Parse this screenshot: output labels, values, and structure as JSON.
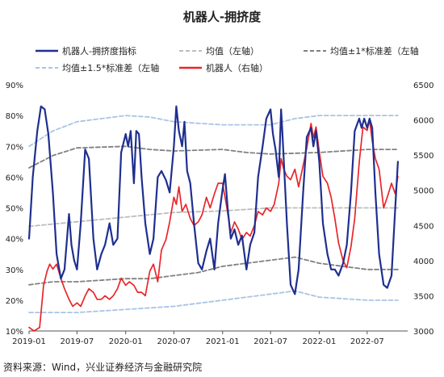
{
  "chart_data": {
    "type": "line",
    "title": "机器人-拥挤度",
    "source": "资料来源：Wind，兴业证券经济与金融研究院",
    "x_tick_labels": [
      "2019-01",
      "2019-07",
      "2020-01",
      "2020-07",
      "2021-01",
      "2021-07",
      "2022-01",
      "2022-07"
    ],
    "x_range": [
      "2019-01",
      "2022-12"
    ],
    "y_left": {
      "min": 0.1,
      "max": 0.9,
      "ticks": [
        "10%",
        "20%",
        "30%",
        "40%",
        "50%",
        "60%",
        "70%",
        "80%",
        "90%"
      ]
    },
    "y_right": {
      "min": 3000,
      "max": 6500,
      "ticks": [
        "3000",
        "3500",
        "4000",
        "4500",
        "5000",
        "5500",
        "6000",
        "6500"
      ]
    },
    "legend": {
      "placement": "top",
      "items": [
        {
          "label": "机器人-拥挤度指标",
          "color": "#1f2f8f",
          "style": "solid"
        },
        {
          "label": "均值（左轴）",
          "color": "#bdbdbd",
          "style": "dashed"
        },
        {
          "label": "均值±1*标准差（左轴",
          "color": "#808080",
          "style": "dashed"
        },
        {
          "label": "均值±1.5*标准差（左轴",
          "color": "#a9c4e4",
          "style": "dashed"
        },
        {
          "label": "机器人（右轴）",
          "color": "#e8262b",
          "style": "solid"
        }
      ]
    },
    "series": [
      {
        "name": "机器人-拥挤度指标",
        "axis": "left",
        "color": "#1f2f8f",
        "points": [
          [
            "2019-01-01",
            0.4
          ],
          [
            "2019-01-15",
            0.6
          ],
          [
            "2019-02-01",
            0.75
          ],
          [
            "2019-02-15",
            0.83
          ],
          [
            "2019-03-01",
            0.82
          ],
          [
            "2019-03-15",
            0.74
          ],
          [
            "2019-04-01",
            0.55
          ],
          [
            "2019-04-15",
            0.35
          ],
          [
            "2019-05-01",
            0.27
          ],
          [
            "2019-05-15",
            0.3
          ],
          [
            "2019-06-01",
            0.48
          ],
          [
            "2019-06-10",
            0.38
          ],
          [
            "2019-06-20",
            0.33
          ],
          [
            "2019-07-01",
            0.3
          ],
          [
            "2019-07-15",
            0.45
          ],
          [
            "2019-08-01",
            0.69
          ],
          [
            "2019-08-15",
            0.66
          ],
          [
            "2019-09-01",
            0.4
          ],
          [
            "2019-09-15",
            0.3
          ],
          [
            "2019-10-01",
            0.35
          ],
          [
            "2019-10-15",
            0.38
          ],
          [
            "2019-11-01",
            0.45
          ],
          [
            "2019-11-15",
            0.38
          ],
          [
            "2019-12-01",
            0.4
          ],
          [
            "2019-12-15",
            0.68
          ],
          [
            "2020-01-01",
            0.74
          ],
          [
            "2020-01-10",
            0.7
          ],
          [
            "2020-01-20",
            0.75
          ],
          [
            "2020-02-01",
            0.58
          ],
          [
            "2020-02-10",
            0.75
          ],
          [
            "2020-02-20",
            0.74
          ],
          [
            "2020-03-01",
            0.6
          ],
          [
            "2020-03-15",
            0.45
          ],
          [
            "2020-04-01",
            0.35
          ],
          [
            "2020-04-15",
            0.4
          ],
          [
            "2020-05-01",
            0.6
          ],
          [
            "2020-05-15",
            0.62
          ],
          [
            "2020-06-01",
            0.59
          ],
          [
            "2020-06-15",
            0.55
          ],
          [
            "2020-07-01",
            0.7
          ],
          [
            "2020-07-10",
            0.83
          ],
          [
            "2020-07-20",
            0.75
          ],
          [
            "2020-08-01",
            0.7
          ],
          [
            "2020-08-10",
            0.78
          ],
          [
            "2020-08-20",
            0.62
          ],
          [
            "2020-09-01",
            0.58
          ],
          [
            "2020-09-15",
            0.45
          ],
          [
            "2020-10-01",
            0.32
          ],
          [
            "2020-10-15",
            0.3
          ],
          [
            "2020-11-01",
            0.36
          ],
          [
            "2020-11-15",
            0.4
          ],
          [
            "2020-12-01",
            0.3
          ],
          [
            "2020-12-15",
            0.45
          ],
          [
            "2021-01-01",
            0.56
          ],
          [
            "2021-01-10",
            0.61
          ],
          [
            "2021-01-20",
            0.5
          ],
          [
            "2021-02-01",
            0.4
          ],
          [
            "2021-02-15",
            0.43
          ],
          [
            "2021-03-01",
            0.38
          ],
          [
            "2021-03-15",
            0.41
          ],
          [
            "2021-04-01",
            0.3
          ],
          [
            "2021-04-15",
            0.38
          ],
          [
            "2021-05-01",
            0.42
          ],
          [
            "2021-05-15",
            0.6
          ],
          [
            "2021-06-01",
            0.7
          ],
          [
            "2021-06-15",
            0.79
          ],
          [
            "2021-07-01",
            0.82
          ],
          [
            "2021-07-10",
            0.74
          ],
          [
            "2021-07-20",
            0.69
          ],
          [
            "2021-08-01",
            0.6
          ],
          [
            "2021-08-10",
            0.82
          ],
          [
            "2021-08-15",
            0.74
          ],
          [
            "2021-09-01",
            0.45
          ],
          [
            "2021-09-15",
            0.25
          ],
          [
            "2021-10-01",
            0.22
          ],
          [
            "2021-10-15",
            0.3
          ],
          [
            "2021-11-01",
            0.55
          ],
          [
            "2021-11-15",
            0.73
          ],
          [
            "2021-12-01",
            0.76
          ],
          [
            "2021-12-10",
            0.7
          ],
          [
            "2021-12-20",
            0.75
          ],
          [
            "2022-01-01",
            0.65
          ],
          [
            "2022-01-15",
            0.45
          ],
          [
            "2022-02-01",
            0.35
          ],
          [
            "2022-02-15",
            0.3
          ],
          [
            "2022-03-01",
            0.3
          ],
          [
            "2022-03-15",
            0.28
          ],
          [
            "2022-04-01",
            0.32
          ],
          [
            "2022-04-15",
            0.38
          ],
          [
            "2022-05-01",
            0.55
          ],
          [
            "2022-05-15",
            0.75
          ],
          [
            "2022-06-01",
            0.79
          ],
          [
            "2022-06-10",
            0.76
          ],
          [
            "2022-06-20",
            0.79
          ],
          [
            "2022-07-01",
            0.76
          ],
          [
            "2022-07-10",
            0.79
          ],
          [
            "2022-07-20",
            0.76
          ],
          [
            "2022-08-01",
            0.55
          ],
          [
            "2022-08-15",
            0.35
          ],
          [
            "2022-09-01",
            0.25
          ],
          [
            "2022-09-15",
            0.24
          ],
          [
            "2022-10-01",
            0.28
          ],
          [
            "2022-10-15",
            0.5
          ],
          [
            "2022-10-25",
            0.65
          ]
        ]
      },
      {
        "name": "均值（左轴）",
        "axis": "left",
        "color": "#bdbdbd",
        "points": [
          [
            "2019-01-01",
            0.44
          ],
          [
            "2019-07-01",
            0.455
          ],
          [
            "2020-01-01",
            0.47
          ],
          [
            "2020-07-01",
            0.485
          ],
          [
            "2021-01-01",
            0.49
          ],
          [
            "2021-07-01",
            0.5
          ],
          [
            "2022-01-01",
            0.5
          ],
          [
            "2022-07-01",
            0.5
          ],
          [
            "2022-10-25",
            0.5
          ]
        ]
      },
      {
        "name": "均值+1*标准差（左轴",
        "axis": "left",
        "color": "#808080",
        "points": [
          [
            "2019-01-01",
            0.63
          ],
          [
            "2019-04-01",
            0.67
          ],
          [
            "2019-07-01",
            0.695
          ],
          [
            "2020-01-01",
            0.7
          ],
          [
            "2020-04-01",
            0.69
          ],
          [
            "2020-07-01",
            0.685
          ],
          [
            "2021-01-01",
            0.69
          ],
          [
            "2021-04-01",
            0.68
          ],
          [
            "2021-07-01",
            0.675
          ],
          [
            "2022-01-01",
            0.68
          ],
          [
            "2022-07-01",
            0.69
          ],
          [
            "2022-10-25",
            0.69
          ]
        ]
      },
      {
        "name": "均值-1*标准差（左轴",
        "axis": "left",
        "color": "#808080",
        "points": [
          [
            "2019-01-01",
            0.25
          ],
          [
            "2019-04-01",
            0.26
          ],
          [
            "2019-07-01",
            0.26
          ],
          [
            "2020-01-01",
            0.27
          ],
          [
            "2020-04-01",
            0.27
          ],
          [
            "2020-07-01",
            0.28
          ],
          [
            "2020-10-01",
            0.29
          ],
          [
            "2021-01-01",
            0.31
          ],
          [
            "2021-04-01",
            0.32
          ],
          [
            "2021-07-01",
            0.33
          ],
          [
            "2021-10-01",
            0.34
          ],
          [
            "2022-01-01",
            0.32
          ],
          [
            "2022-07-01",
            0.3
          ],
          [
            "2022-10-25",
            0.3
          ]
        ]
      },
      {
        "name": "均值+1.5*标准差（左轴",
        "axis": "left",
        "color": "#a9c4e4",
        "points": [
          [
            "2019-01-01",
            0.7
          ],
          [
            "2019-04-01",
            0.75
          ],
          [
            "2019-07-01",
            0.78
          ],
          [
            "2020-01-01",
            0.8
          ],
          [
            "2020-04-01",
            0.795
          ],
          [
            "2020-07-01",
            0.78
          ],
          [
            "2021-01-01",
            0.77
          ],
          [
            "2021-04-01",
            0.77
          ],
          [
            "2021-07-01",
            0.77
          ],
          [
            "2021-10-01",
            0.79
          ],
          [
            "2022-01-01",
            0.8
          ],
          [
            "2022-07-01",
            0.8
          ],
          [
            "2022-10-25",
            0.8
          ]
        ]
      },
      {
        "name": "均值-1.5*标准差（左轴",
        "axis": "left",
        "color": "#a9c4e4",
        "points": [
          [
            "2019-01-01",
            0.16
          ],
          [
            "2019-07-01",
            0.16
          ],
          [
            "2020-01-01",
            0.17
          ],
          [
            "2020-07-01",
            0.18
          ],
          [
            "2021-01-01",
            0.2
          ],
          [
            "2021-07-01",
            0.22
          ],
          [
            "2021-10-01",
            0.23
          ],
          [
            "2022-01-01",
            0.21
          ],
          [
            "2022-07-01",
            0.2
          ],
          [
            "2022-10-25",
            0.2
          ]
        ]
      },
      {
        "name": "机器人（右轴）",
        "axis": "right",
        "color": "#e8262b",
        "points": [
          [
            "2019-01-01",
            3050
          ],
          [
            "2019-01-20",
            3000
          ],
          [
            "2019-02-10",
            3050
          ],
          [
            "2019-02-25",
            3650
          ],
          [
            "2019-03-10",
            3850
          ],
          [
            "2019-03-20",
            3950
          ],
          [
            "2019-04-01",
            3880
          ],
          [
            "2019-04-15",
            3950
          ],
          [
            "2019-05-01",
            3750
          ],
          [
            "2019-05-15",
            3600
          ],
          [
            "2019-06-01",
            3450
          ],
          [
            "2019-06-15",
            3350
          ],
          [
            "2019-07-01",
            3400
          ],
          [
            "2019-07-15",
            3350
          ],
          [
            "2019-08-01",
            3500
          ],
          [
            "2019-08-15",
            3600
          ],
          [
            "2019-09-01",
            3550
          ],
          [
            "2019-09-15",
            3450
          ],
          [
            "2019-10-01",
            3450
          ],
          [
            "2019-10-15",
            3500
          ],
          [
            "2019-11-01",
            3450
          ],
          [
            "2019-11-15",
            3500
          ],
          [
            "2019-12-01",
            3600
          ],
          [
            "2019-12-15",
            3750
          ],
          [
            "2020-01-01",
            3650
          ],
          [
            "2020-01-15",
            3700
          ],
          [
            "2020-02-01",
            3650
          ],
          [
            "2020-02-15",
            3550
          ],
          [
            "2020-03-01",
            3550
          ],
          [
            "2020-03-15",
            3500
          ],
          [
            "2020-04-01",
            3850
          ],
          [
            "2020-04-15",
            3950
          ],
          [
            "2020-05-01",
            3700
          ],
          [
            "2020-05-15",
            4150
          ],
          [
            "2020-06-01",
            4300
          ],
          [
            "2020-06-15",
            4550
          ],
          [
            "2020-07-01",
            4900
          ],
          [
            "2020-07-10",
            4800
          ],
          [
            "2020-07-20",
            5050
          ],
          [
            "2020-08-01",
            4700
          ],
          [
            "2020-08-15",
            4800
          ],
          [
            "2020-09-01",
            4600
          ],
          [
            "2020-09-15",
            4500
          ],
          [
            "2020-10-01",
            4550
          ],
          [
            "2020-10-15",
            4650
          ],
          [
            "2020-11-01",
            4900
          ],
          [
            "2020-11-15",
            4750
          ],
          [
            "2020-12-01",
            4950
          ],
          [
            "2020-12-15",
            5100
          ],
          [
            "2021-01-01",
            5100
          ],
          [
            "2021-01-15",
            4800
          ],
          [
            "2021-02-01",
            4400
          ],
          [
            "2021-02-15",
            4550
          ],
          [
            "2021-03-01",
            4450
          ],
          [
            "2021-03-15",
            4300
          ],
          [
            "2021-04-01",
            4400
          ],
          [
            "2021-04-15",
            4350
          ],
          [
            "2021-05-01",
            4500
          ],
          [
            "2021-05-15",
            4700
          ],
          [
            "2021-06-01",
            4650
          ],
          [
            "2021-06-15",
            4750
          ],
          [
            "2021-07-01",
            4700
          ],
          [
            "2021-07-15",
            4800
          ],
          [
            "2021-08-01",
            5100
          ],
          [
            "2021-08-10",
            5450
          ],
          [
            "2021-08-20",
            5300
          ],
          [
            "2021-09-01",
            5200
          ],
          [
            "2021-09-15",
            5150
          ],
          [
            "2021-10-01",
            5300
          ],
          [
            "2021-10-15",
            5050
          ],
          [
            "2021-11-01",
            5350
          ],
          [
            "2021-11-15",
            5600
          ],
          [
            "2021-12-01",
            5950
          ],
          [
            "2021-12-10",
            5750
          ],
          [
            "2021-12-20",
            5900
          ],
          [
            "2022-01-01",
            5550
          ],
          [
            "2022-01-15",
            5200
          ],
          [
            "2022-02-01",
            5100
          ],
          [
            "2022-02-15",
            4900
          ],
          [
            "2022-03-01",
            4600
          ],
          [
            "2022-03-15",
            4250
          ],
          [
            "2022-04-01",
            4000
          ],
          [
            "2022-04-15",
            3900
          ],
          [
            "2022-05-01",
            4200
          ],
          [
            "2022-05-15",
            4600
          ],
          [
            "2022-06-01",
            5400
          ],
          [
            "2022-06-15",
            5900
          ],
          [
            "2022-07-01",
            5850
          ],
          [
            "2022-07-10",
            6000
          ],
          [
            "2022-07-20",
            5700
          ],
          [
            "2022-08-01",
            5450
          ],
          [
            "2022-08-15",
            5300
          ],
          [
            "2022-09-01",
            4750
          ],
          [
            "2022-09-15",
            4900
          ],
          [
            "2022-10-01",
            5100
          ],
          [
            "2022-10-15",
            4950
          ],
          [
            "2022-10-25",
            5200
          ]
        ]
      }
    ]
  }
}
